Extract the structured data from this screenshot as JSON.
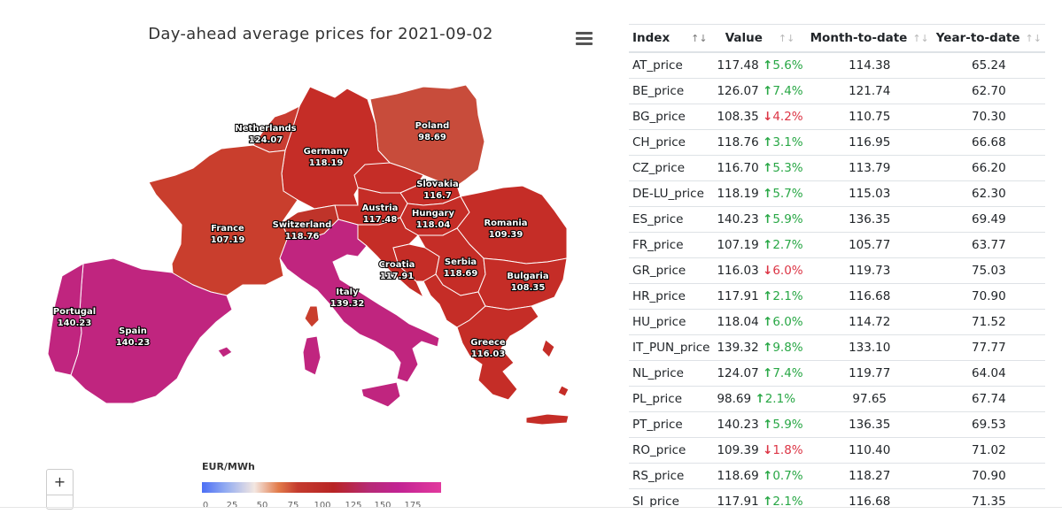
{
  "map": {
    "title": "Day-ahead average prices for 2021-09-02",
    "colors": {
      "poland": "#c84c3b",
      "high_red": "#c52d27",
      "red": "#bf342a",
      "mid_red": "#c93c31",
      "magenta": "#c0257f",
      "france": "#c93e2d"
    },
    "countries": [
      {
        "name": "Netherlands",
        "value": "124.07"
      },
      {
        "name": "Germany",
        "value": "118.19"
      },
      {
        "name": "Poland",
        "value": "98.69"
      },
      {
        "name": "Slovakia",
        "value": "116.7"
      },
      {
        "name": "Austria",
        "value": "117.48"
      },
      {
        "name": "Hungary",
        "value": "118.04"
      },
      {
        "name": "Romania",
        "value": "109.39"
      },
      {
        "name": "France",
        "value": "107.19"
      },
      {
        "name": "Switzerland",
        "value": "118.76"
      },
      {
        "name": "Croatia",
        "value": "117.91"
      },
      {
        "name": "Serbia",
        "value": "118.69"
      },
      {
        "name": "Bulgaria",
        "value": "108.35"
      },
      {
        "name": "Italy",
        "value": "139.32"
      },
      {
        "name": "Portugal",
        "value": "140.23"
      },
      {
        "name": "Spain",
        "value": "140.23"
      },
      {
        "name": "Greece",
        "value": "116.03"
      }
    ],
    "legend": {
      "title": "EUR/MWh",
      "ticks": [
        "0",
        "25",
        "50",
        "75",
        "100",
        "125",
        "150",
        "175"
      ]
    },
    "zoom_in_label": "+"
  },
  "table": {
    "headers": [
      "Index",
      "Value",
      "Month-to-date",
      "Year-to-date"
    ],
    "sort_icon_active": "↑↓",
    "sort_icon": "↑↓",
    "rows": [
      {
        "index": "AT_price",
        "value": "117.48",
        "dir": "up",
        "change": "5.6%",
        "mtd": "114.38",
        "ytd": "65.24"
      },
      {
        "index": "BE_price",
        "value": "126.07",
        "dir": "up",
        "change": "7.4%",
        "mtd": "121.74",
        "ytd": "62.70"
      },
      {
        "index": "BG_price",
        "value": "108.35",
        "dir": "down",
        "change": "4.2%",
        "mtd": "110.75",
        "ytd": "70.30"
      },
      {
        "index": "CH_price",
        "value": "118.76",
        "dir": "up",
        "change": "3.1%",
        "mtd": "116.95",
        "ytd": "66.68"
      },
      {
        "index": "CZ_price",
        "value": "116.70",
        "dir": "up",
        "change": "5.3%",
        "mtd": "113.79",
        "ytd": "66.20"
      },
      {
        "index": "DE-LU_price",
        "value": "118.19",
        "dir": "up",
        "change": "5.7%",
        "mtd": "115.03",
        "ytd": "62.30"
      },
      {
        "index": "ES_price",
        "value": "140.23",
        "dir": "up",
        "change": "5.9%",
        "mtd": "136.35",
        "ytd": "69.49"
      },
      {
        "index": "FR_price",
        "value": "107.19",
        "dir": "up",
        "change": "2.7%",
        "mtd": "105.77",
        "ytd": "63.77"
      },
      {
        "index": "GR_price",
        "value": "116.03",
        "dir": "down",
        "change": "6.0%",
        "mtd": "119.73",
        "ytd": "75.03"
      },
      {
        "index": "HR_price",
        "value": "117.91",
        "dir": "up",
        "change": "2.1%",
        "mtd": "116.68",
        "ytd": "70.90"
      },
      {
        "index": "HU_price",
        "value": "118.04",
        "dir": "up",
        "change": "6.0%",
        "mtd": "114.72",
        "ytd": "71.52"
      },
      {
        "index": "IT_PUN_price",
        "value": "139.32",
        "dir": "up",
        "change": "9.8%",
        "mtd": "133.10",
        "ytd": "77.77"
      },
      {
        "index": "NL_price",
        "value": "124.07",
        "dir": "up",
        "change": "7.4%",
        "mtd": "119.77",
        "ytd": "64.04"
      },
      {
        "index": "PL_price",
        "value": "98.69",
        "dir": "up",
        "change": "2.1%",
        "mtd": "97.65",
        "ytd": "67.74"
      },
      {
        "index": "PT_price",
        "value": "140.23",
        "dir": "up",
        "change": "5.9%",
        "mtd": "136.35",
        "ytd": "69.53"
      },
      {
        "index": "RO_price",
        "value": "109.39",
        "dir": "down",
        "change": "1.8%",
        "mtd": "110.40",
        "ytd": "71.02"
      },
      {
        "index": "RS_price",
        "value": "118.69",
        "dir": "up",
        "change": "0.7%",
        "mtd": "118.27",
        "ytd": "70.90"
      },
      {
        "index": "SI_price",
        "value": "117.91",
        "dir": "up",
        "change": "2.1%",
        "mtd": "116.68",
        "ytd": "71.35"
      }
    ]
  }
}
